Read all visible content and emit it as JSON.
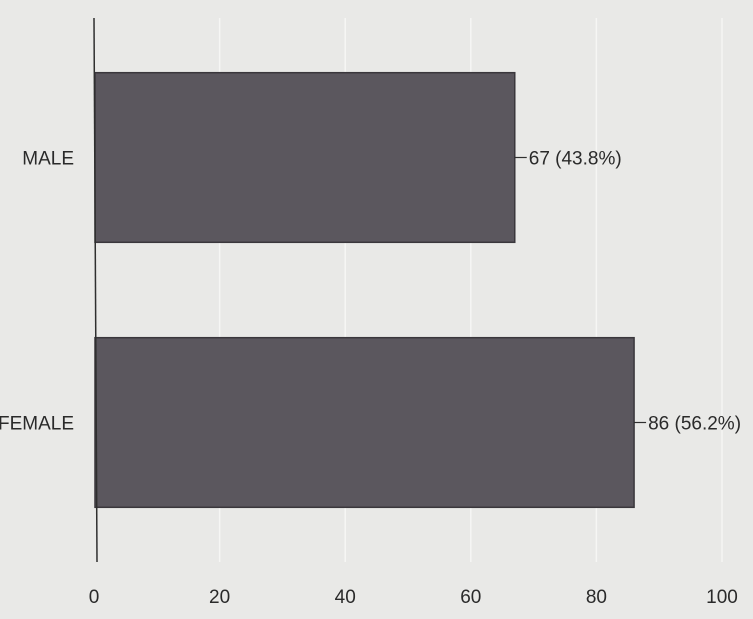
{
  "chart_data": {
    "type": "bar",
    "orientation": "horizontal",
    "categories": [
      "MALE",
      "FEMALE"
    ],
    "values": [
      67,
      86
    ],
    "data_labels": [
      "67 (43.8%)",
      "86 (56.2%)"
    ],
    "xlim": [
      0,
      100
    ],
    "xticks": [
      "0",
      "20",
      "40",
      "60",
      "80",
      "100"
    ],
    "grid": true,
    "legend": "none",
    "colors": {
      "bar": "#5b575e",
      "bar_edge": "#3a373c",
      "axis": "#2f2f2f",
      "grid": "#f6f6f4",
      "background": "#e9e9e7"
    }
  }
}
